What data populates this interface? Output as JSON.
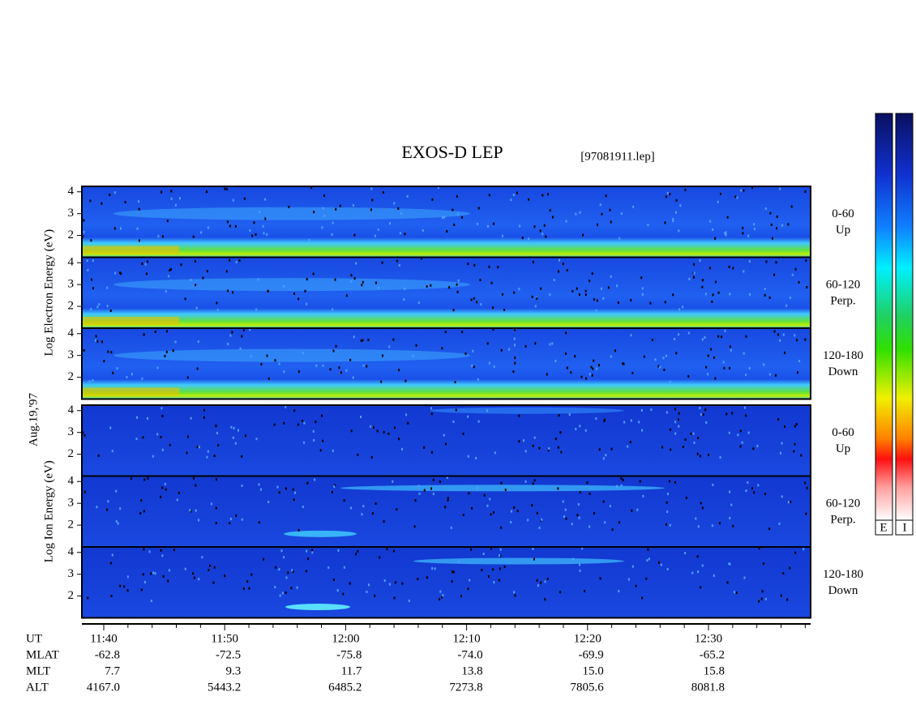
{
  "chart_data": {
    "type": "spectrogram",
    "title": "EXOS-D LEP",
    "file": "[97081911.lep]",
    "date": "Aug.19,'97",
    "ylim": [
      1,
      4.25
    ],
    "yticks": [
      2,
      3,
      4
    ],
    "groups": [
      {
        "ylabel": "Log Electron Energy (eV)",
        "species": "electron",
        "panels": [
          {
            "angle": "0-60",
            "direction": "Up"
          },
          {
            "angle": "60-120",
            "direction": "Perp."
          },
          {
            "angle": "120-180",
            "direction": "Down"
          }
        ]
      },
      {
        "ylabel": "Log Ion Energy (eV)",
        "species": "ion",
        "panels": [
          {
            "angle": "0-60",
            "direction": "Up"
          },
          {
            "angle": "60-120",
            "direction": "Perp."
          },
          {
            "angle": "120-180",
            "direction": "Down"
          }
        ]
      }
    ],
    "colorbars": [
      "E",
      "I"
    ],
    "x_rows": [
      {
        "name": "UT",
        "values": [
          "11:40",
          "11:50",
          "12:00",
          "12:10",
          "12:20",
          "12:30"
        ]
      },
      {
        "name": "MLAT",
        "values": [
          "-62.8",
          "-72.5",
          "-75.8",
          "-74.0",
          "-69.9",
          "-65.2"
        ]
      },
      {
        "name": "MLT",
        "values": [
          "7.7",
          "9.3",
          "11.7",
          "13.8",
          "15.0",
          "15.8"
        ]
      },
      {
        "name": "ALT",
        "values": [
          "4167.0",
          "5443.2",
          "6485.2",
          "7273.8",
          "7805.6",
          "8081.8"
        ]
      }
    ]
  }
}
